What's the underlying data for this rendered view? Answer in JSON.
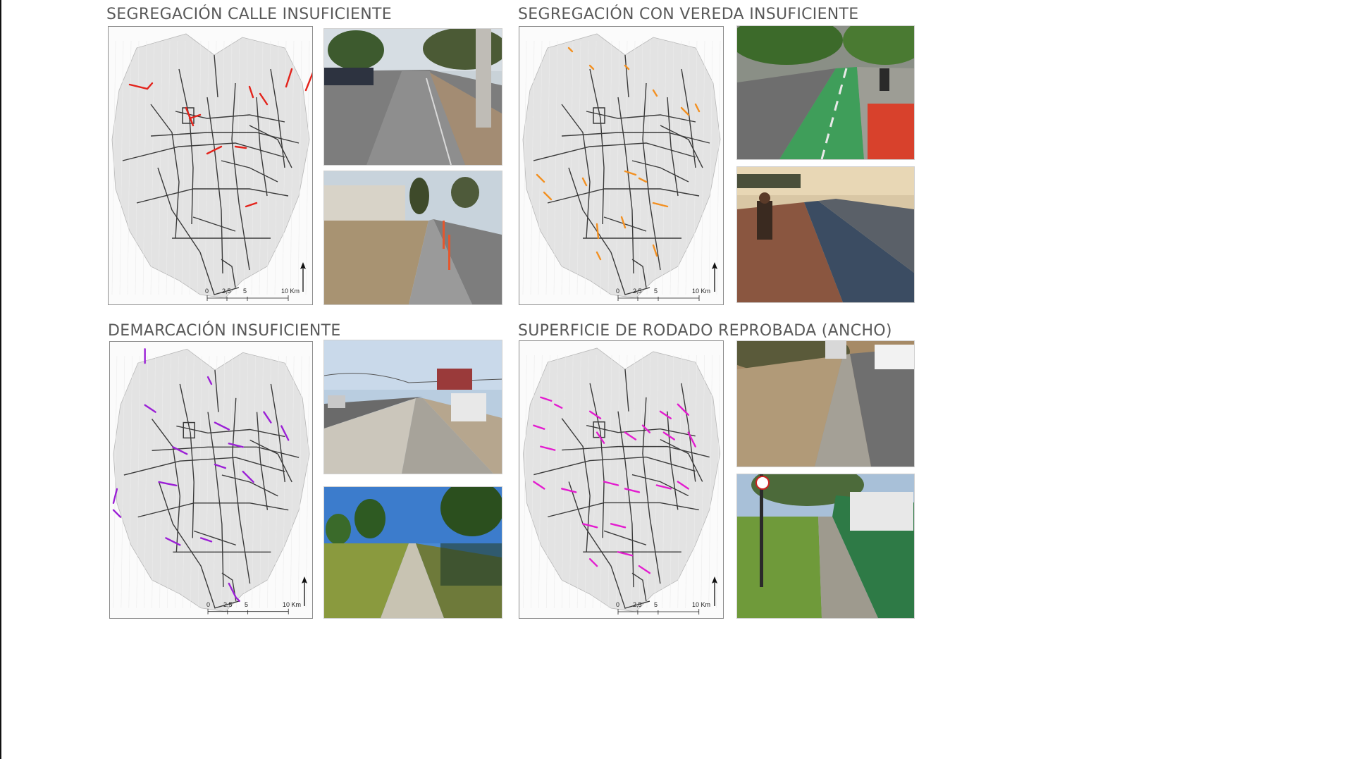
{
  "panels": [
    {
      "id": "p1",
      "title": "SEGREGACIÓN CALLE INSUFICIENTE",
      "highlight_color": "#e3231b",
      "photos": [
        "street-with-painted-bike-lane",
        "sidewalk-lane-with-orange-bollards"
      ]
    },
    {
      "id": "p2",
      "title": "SEGREGACIÓN CON VEREDA INSUFICIENTE",
      "highlight_color": "#f39021",
      "photos": [
        "green-painted-bike-lane",
        "sidewalk-adjacent-blue-lane"
      ]
    },
    {
      "id": "p3",
      "title": "DEMARCACIÓN INSUFICIENTE",
      "highlight_color": "#9b1fd6",
      "photos": [
        "unmarked-lane-beside-road",
        "park-path-with-trees"
      ]
    },
    {
      "id": "p4",
      "title": "SUPERFICIE DE RODADO REPROBADA (ANCHO)",
      "highlight_color": "#e31ccf",
      "photos": [
        "narrow-lane-dirt-sidewalk",
        "narrow-lane-green-wall"
      ]
    }
  ],
  "scale_bar": {
    "labels": [
      "0",
      "2,5",
      "5",
      "10 Km"
    ],
    "north": "N"
  },
  "colors": {
    "network_line": "#3a3a3a",
    "map_background": "#fbfbfb",
    "map_blocks": "#e3e3e3",
    "title_text": "#595959"
  }
}
